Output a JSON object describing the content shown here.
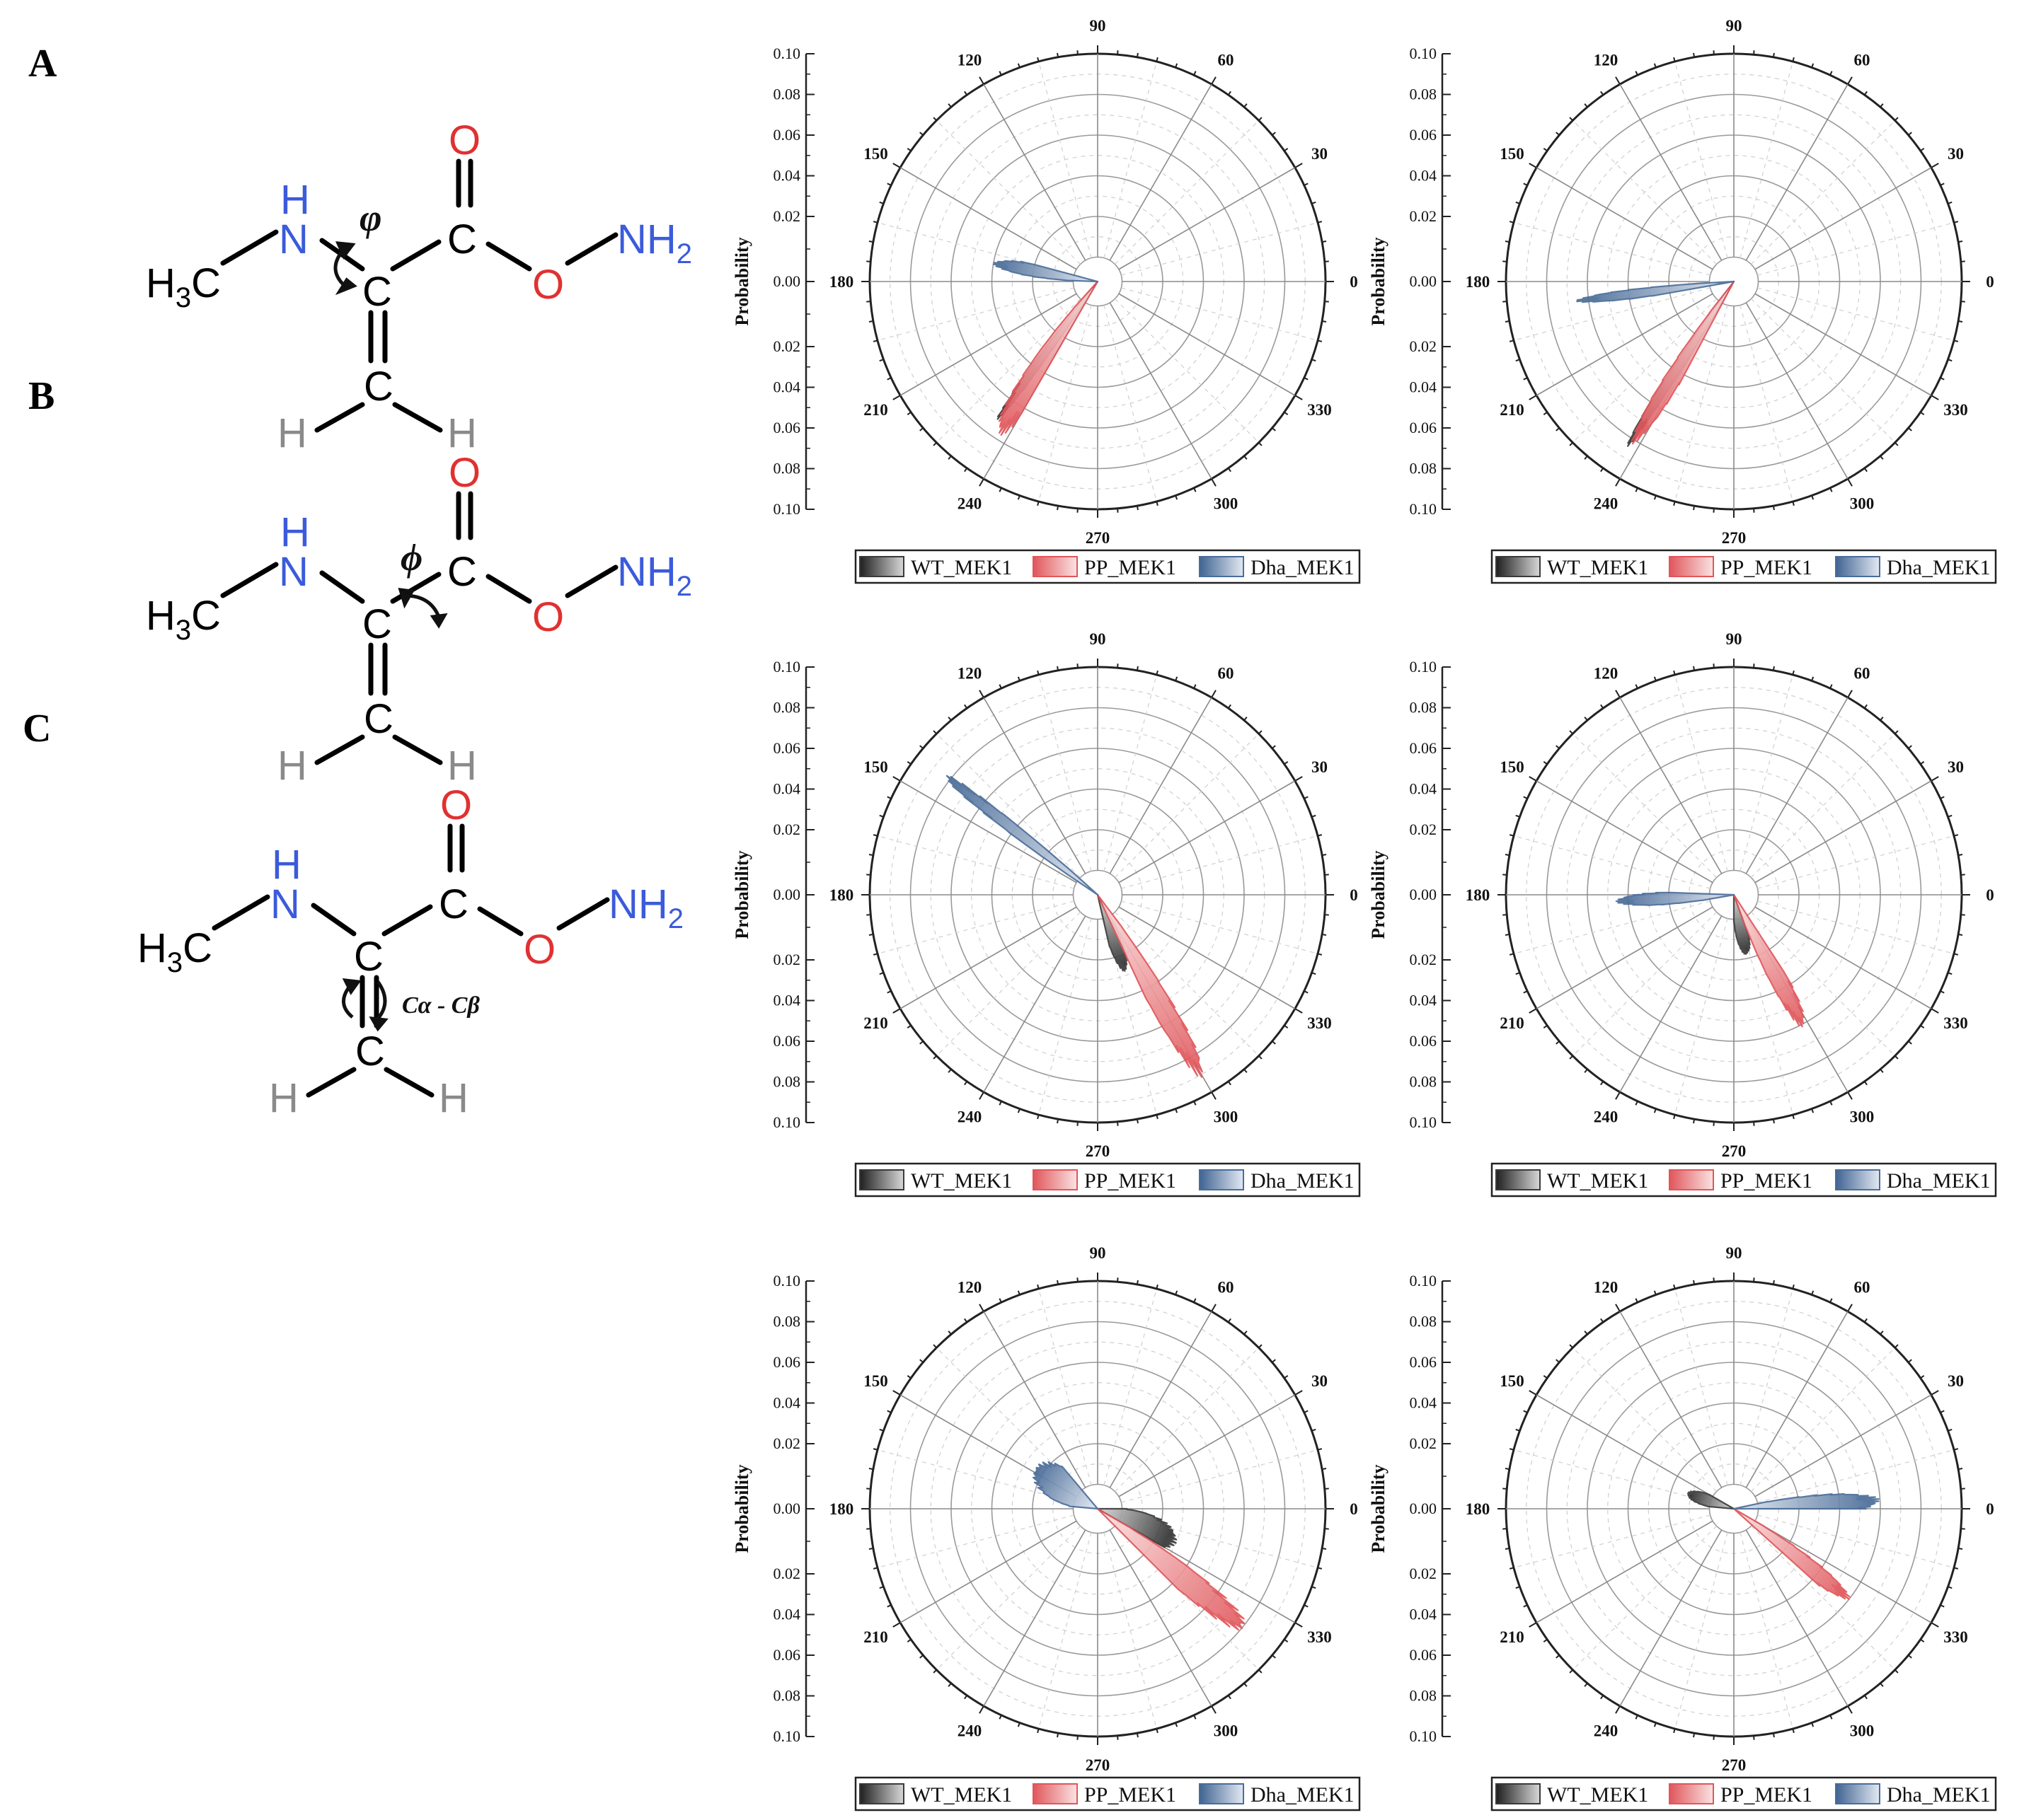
{
  "panels": [
    {
      "letter": "A",
      "angle_symbol": "φ"
    },
    {
      "letter": "B",
      "angle_symbol": "ϕ"
    },
    {
      "letter": "C",
      "angle_symbol": "Cα - Cβ"
    }
  ],
  "molecule": {
    "methyl": "H",
    "methyl_c": "C",
    "methyl_sub": "3",
    "nh_h": "H",
    "nh_n": "N",
    "c_alpha": "C",
    "c_carbonyl": "C",
    "o_double": "O",
    "o_single": "O",
    "nh2_n": "NH",
    "nh2_sub": "2",
    "c_beta": "C",
    "h_left": "H",
    "h_right": "H"
  },
  "colors": {
    "WT_MEK1": "#3a3a3a",
    "PP_MEK1": "#e0565b",
    "Dha_MEK1": "#4a6d99",
    "blue_atom": "#3b5bdb",
    "red_atom": "#e03131",
    "grey_atom": "#8a8a8a"
  },
  "chart_data": [
    {
      "type": "polar-histogram",
      "panel": "A",
      "position": "left",
      "ylabel": "Probability",
      "radial_ticks": [
        "0.10",
        "0.08",
        "0.06",
        "0.04",
        "0.02",
        "0.00",
        "0.02",
        "0.04",
        "0.06",
        "0.08",
        "0.10"
      ],
      "rlim": [
        0,
        0.1
      ],
      "angle_ticks": [
        "0",
        "30",
        "60",
        "90",
        "120",
        "150",
        "180",
        "210",
        "240",
        "270",
        "300",
        "330"
      ],
      "legend": [
        "WT_MEK1",
        "PP_MEK1",
        "Dha_MEK1"
      ],
      "legend_placement": "bottom",
      "series": [
        {
          "name": "WT_MEK1",
          "angle_range": [
            231,
            237
          ],
          "peak_angle": 234,
          "peak_value": 0.072
        },
        {
          "name": "PP_MEK1",
          "angle_range": [
            228,
            240
          ],
          "peak_angle": 237,
          "peak_value": 0.078
        },
        {
          "name": "Dha_MEK1",
          "angle_range": [
            165,
            178
          ],
          "peak_angle": 170,
          "peak_value": 0.04
        }
      ]
    },
    {
      "type": "polar-histogram",
      "panel": "A",
      "position": "right",
      "ylabel": "Probability",
      "radial_ticks": [
        "0.10",
        "0.08",
        "0.06",
        "0.04",
        "0.02",
        "0.00",
        "0.02",
        "0.04",
        "0.06",
        "0.08",
        "0.10"
      ],
      "rlim": [
        0,
        0.1
      ],
      "angle_ticks": [
        "0",
        "30",
        "60",
        "90",
        "120",
        "150",
        "180",
        "210",
        "240",
        "270",
        "300",
        "330"
      ],
      "legend": [
        "WT_MEK1",
        "PP_MEK1",
        "Dha_MEK1"
      ],
      "legend_placement": "bottom",
      "series": [
        {
          "name": "WT_MEK1",
          "angle_range": [
            234,
            240
          ],
          "peak_angle": 237,
          "peak_value": 0.085
        },
        {
          "name": "PP_MEK1",
          "angle_range": [
            232,
            242
          ],
          "peak_angle": 238,
          "peak_value": 0.082
        },
        {
          "name": "Dha_MEK1",
          "angle_range": [
            183,
            190
          ],
          "peak_angle": 187,
          "peak_value": 0.066
        }
      ]
    },
    {
      "type": "polar-histogram",
      "panel": "B",
      "position": "left",
      "ylabel": "Probability",
      "radial_ticks": [
        "0.10",
        "0.08",
        "0.06",
        "0.04",
        "0.02",
        "0.00",
        "0.02",
        "0.04",
        "0.06",
        "0.08",
        "0.10"
      ],
      "rlim": [
        0,
        0.1
      ],
      "angle_ticks": [
        "0",
        "30",
        "60",
        "90",
        "120",
        "150",
        "180",
        "210",
        "240",
        "270",
        "300",
        "330"
      ],
      "legend": [
        "WT_MEK1",
        "PP_MEK1",
        "Dha_MEK1"
      ],
      "legend_placement": "bottom",
      "series": [
        {
          "name": "WT_MEK1",
          "angle_range": [
            283,
            300
          ],
          "peak_angle": 290,
          "peak_value": 0.028
        },
        {
          "name": "PP_MEK1",
          "angle_range": [
            295,
            307
          ],
          "peak_angle": 300,
          "peak_value": 0.092
        },
        {
          "name": "Dha_MEK1",
          "angle_range": [
            138,
            146
          ],
          "peak_angle": 142,
          "peak_value": 0.085
        }
      ]
    },
    {
      "type": "polar-histogram",
      "panel": "B",
      "position": "right",
      "ylabel": "Probability",
      "radial_ticks": [
        "0.10",
        "0.08",
        "0.06",
        "0.04",
        "0.02",
        "0.00",
        "0.02",
        "0.04",
        "0.06",
        "0.08",
        "0.10"
      ],
      "rlim": [
        0,
        0.1
      ],
      "angle_ticks": [
        "0",
        "30",
        "60",
        "90",
        "120",
        "150",
        "180",
        "210",
        "240",
        "270",
        "300",
        "330"
      ],
      "legend": [
        "WT_MEK1",
        "PP_MEK1",
        "Dha_MEK1"
      ],
      "legend_placement": "bottom",
      "series": [
        {
          "name": "WT_MEK1",
          "angle_range": [
            270,
            290
          ],
          "peak_angle": 282,
          "peak_value": 0.018
        },
        {
          "name": "PP_MEK1",
          "angle_range": [
            290,
            303
          ],
          "peak_angle": 298,
          "peak_value": 0.062
        },
        {
          "name": "Dha_MEK1",
          "angle_range": [
            178,
            190
          ],
          "peak_angle": 183,
          "peak_value": 0.046
        }
      ]
    },
    {
      "type": "polar-histogram",
      "panel": "C",
      "position": "left",
      "ylabel": "Probability",
      "radial_ticks": [
        "0.10",
        "0.08",
        "0.06",
        "0.04",
        "0.02",
        "0.00",
        "0.02",
        "0.04",
        "0.06",
        "0.08",
        "0.10"
      ],
      "rlim": [
        0,
        0.1
      ],
      "angle_ticks": [
        "0",
        "30",
        "60",
        "90",
        "120",
        "150",
        "180",
        "210",
        "240",
        "270",
        "300",
        "330"
      ],
      "legend": [
        "WT_MEK1",
        "PP_MEK1",
        "Dha_MEK1"
      ],
      "legend_placement": "bottom",
      "series": [
        {
          "name": "WT_MEK1",
          "angle_range": [
            330,
            360
          ],
          "peak_angle": 337,
          "peak_value": 0.03
        },
        {
          "name": "PP_MEK1",
          "angle_range": [
            315,
            330
          ],
          "peak_angle": 321,
          "peak_value": 0.083
        },
        {
          "name": "Dha_MEK1",
          "angle_range": [
            130,
            175
          ],
          "peak_angle": 147,
          "peak_value": 0.025
        }
      ]
    },
    {
      "type": "polar-histogram",
      "panel": "C",
      "position": "right",
      "ylabel": "Probability",
      "radial_ticks": [
        "0.10",
        "0.08",
        "0.06",
        "0.04",
        "0.02",
        "0.00",
        "0.02",
        "0.04",
        "0.06",
        "0.08",
        "0.10"
      ],
      "rlim": [
        0,
        0.1
      ],
      "angle_ticks": [
        "0",
        "30",
        "60",
        "90",
        "120",
        "150",
        "180",
        "210",
        "240",
        "270",
        "300",
        "330"
      ],
      "legend": [
        "WT_MEK1",
        "PP_MEK1",
        "Dha_MEK1"
      ],
      "legend_placement": "bottom",
      "series": [
        {
          "name": "WT_MEK1",
          "angle_range": [
            150,
            175
          ],
          "peak_angle": 162,
          "peak_value": 0.012
        },
        {
          "name": "PP_MEK1",
          "angle_range": [
            318,
            330
          ],
          "peak_angle": 322,
          "peak_value": 0.06
        },
        {
          "name": "Dha_MEK1",
          "angle_range": [
            0,
            12
          ],
          "peak_angle": 3,
          "peak_value": 0.06
        }
      ]
    }
  ]
}
